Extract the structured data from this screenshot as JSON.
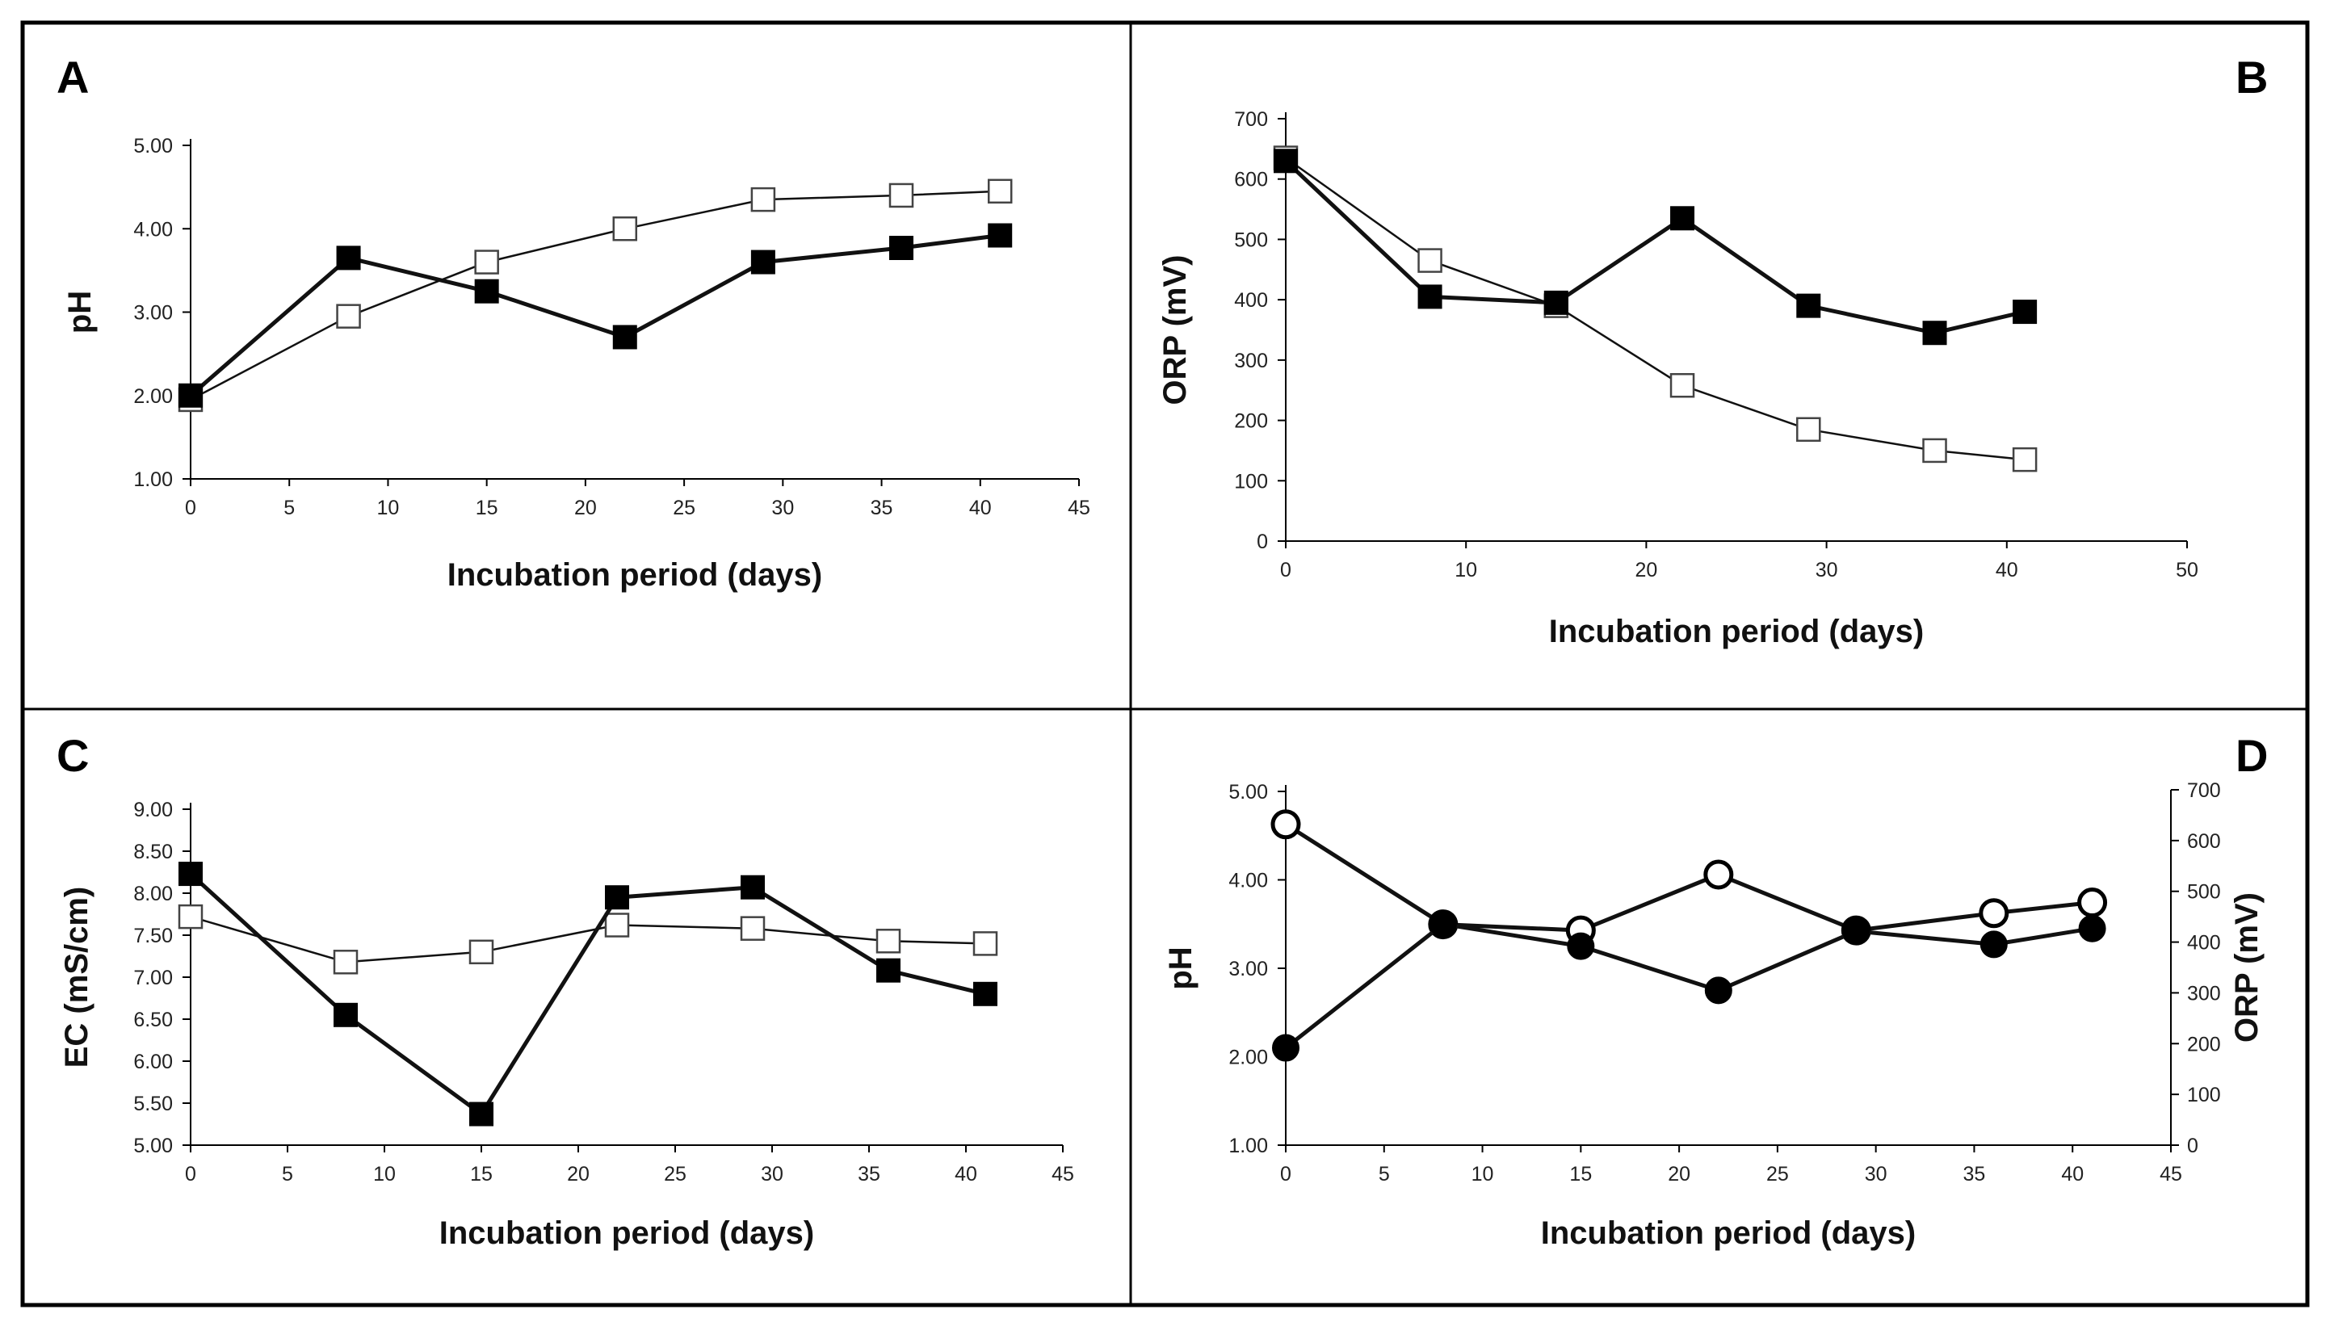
{
  "chart_data": [
    {
      "panel": "A",
      "type": "line",
      "xlabel": "Incubation period (days)",
      "ylabel": "pH",
      "xlim": [
        0,
        45
      ],
      "ylim": [
        1.0,
        5.0
      ],
      "xticks": [
        "0",
        "5",
        "10",
        "15",
        "20",
        "25",
        "30",
        "35",
        "40",
        "45"
      ],
      "yticks": [
        "1.00",
        "2.00",
        "3.00",
        "4.00",
        "5.00"
      ],
      "x": [
        0,
        8,
        15,
        22,
        29,
        36,
        41
      ],
      "series": [
        {
          "name": "filled-squares",
          "marker": "square-filled",
          "values": [
            2.0,
            3.65,
            3.25,
            2.7,
            3.6,
            3.77,
            3.92
          ]
        },
        {
          "name": "open-squares",
          "marker": "square-open",
          "values": [
            1.95,
            2.95,
            3.6,
            4.0,
            4.35,
            4.4,
            4.45
          ]
        }
      ]
    },
    {
      "panel": "B",
      "type": "line",
      "xlabel": "Incubation period (days)",
      "ylabel": "ORP (mV)",
      "xlim": [
        0,
        50
      ],
      "ylim": [
        0,
        700
      ],
      "xticks": [
        "0",
        "10",
        "20",
        "30",
        "40",
        "50"
      ],
      "yticks": [
        "0",
        "100",
        "200",
        "300",
        "400",
        "500",
        "600",
        "700"
      ],
      "x": [
        0,
        8,
        15,
        22,
        29,
        36,
        41
      ],
      "series": [
        {
          "name": "filled-squares",
          "marker": "square-filled",
          "values": [
            630,
            405,
            395,
            535,
            390,
            345,
            380
          ]
        },
        {
          "name": "open-squares",
          "marker": "square-open",
          "values": [
            635,
            465,
            390,
            258,
            185,
            150,
            135
          ]
        }
      ]
    },
    {
      "panel": "C",
      "type": "line",
      "xlabel": "Incubation period (days)",
      "ylabel": "EC (mS/cm)",
      "xlim": [
        0,
        45
      ],
      "ylim": [
        5.0,
        9.0
      ],
      "xticks": [
        "0",
        "5",
        "10",
        "15",
        "20",
        "25",
        "30",
        "35",
        "40",
        "45"
      ],
      "yticks": [
        "5.00",
        "5.50",
        "6.00",
        "6.50",
        "7.00",
        "7.50",
        "8.00",
        "8.50",
        "9.00"
      ],
      "x": [
        0,
        8,
        15,
        22,
        29,
        36,
        41
      ],
      "series": [
        {
          "name": "filled-squares",
          "marker": "square-filled",
          "values": [
            8.23,
            6.55,
            5.37,
            7.95,
            8.07,
            7.08,
            6.8
          ]
        },
        {
          "name": "open-squares",
          "marker": "square-open",
          "values": [
            7.72,
            7.18,
            7.3,
            7.62,
            7.58,
            7.43,
            7.4
          ]
        }
      ]
    },
    {
      "panel": "D",
      "type": "line",
      "xlabel": "Incubation period (days)",
      "ylabel": "pH",
      "ylabel_right": "ORP (mV)",
      "xlim": [
        0,
        45
      ],
      "ylim": [
        1.0,
        5.0
      ],
      "ylim_right": [
        0,
        700
      ],
      "xticks": [
        "0",
        "5",
        "10",
        "15",
        "20",
        "25",
        "30",
        "35",
        "40",
        "45"
      ],
      "yticks": [
        "1.00",
        "2.00",
        "3.00",
        "4.00",
        "5.00"
      ],
      "yticks_right": [
        "0",
        "100",
        "200",
        "300",
        "400",
        "500",
        "600",
        "700"
      ],
      "x": [
        0,
        8,
        15,
        22,
        29,
        36,
        41
      ],
      "series": [
        {
          "name": "pH",
          "axis": "left",
          "marker": "circle-filled",
          "values": [
            2.1,
            3.5,
            3.25,
            2.75,
            3.42,
            3.27,
            3.45
          ]
        },
        {
          "name": "ORP",
          "axis": "right",
          "marker": "circle-open",
          "values": [
            632,
            435,
            423,
            533,
            423,
            457,
            478
          ]
        }
      ]
    }
  ]
}
